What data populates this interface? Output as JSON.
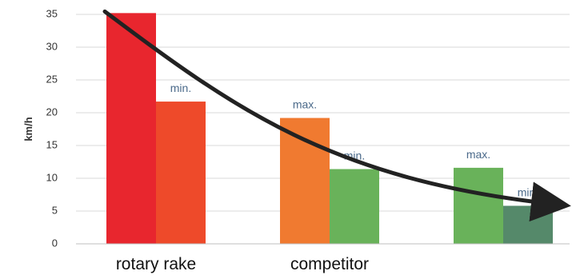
{
  "chart_data": {
    "type": "bar",
    "ylabel": "km/h",
    "ylim": [
      0,
      35
    ],
    "yticks": [
      0,
      5,
      10,
      15,
      20,
      25,
      30,
      35
    ],
    "grid": true,
    "groups": [
      {
        "label": "rotary rake",
        "bars": [
          {
            "value": 35.2,
            "color": "#e8262e",
            "data_label": ""
          },
          {
            "value": 21.7,
            "color": "#ee4a2a",
            "data_label": "min."
          }
        ]
      },
      {
        "label": "competitor",
        "bars": [
          {
            "value": 19.2,
            "color": "#f07a30",
            "data_label": "max."
          },
          {
            "value": 11.4,
            "color": "#69b25a",
            "data_label": "min."
          }
        ]
      },
      {
        "label": "",
        "bars": [
          {
            "value": 11.6,
            "color": "#69b25a",
            "data_label": "max."
          },
          {
            "value": 5.8,
            "color": "#55896a",
            "data_label": "min."
          }
        ]
      }
    ],
    "trend_arrow": {
      "color": "#222222",
      "direction": "decreasing"
    }
  }
}
